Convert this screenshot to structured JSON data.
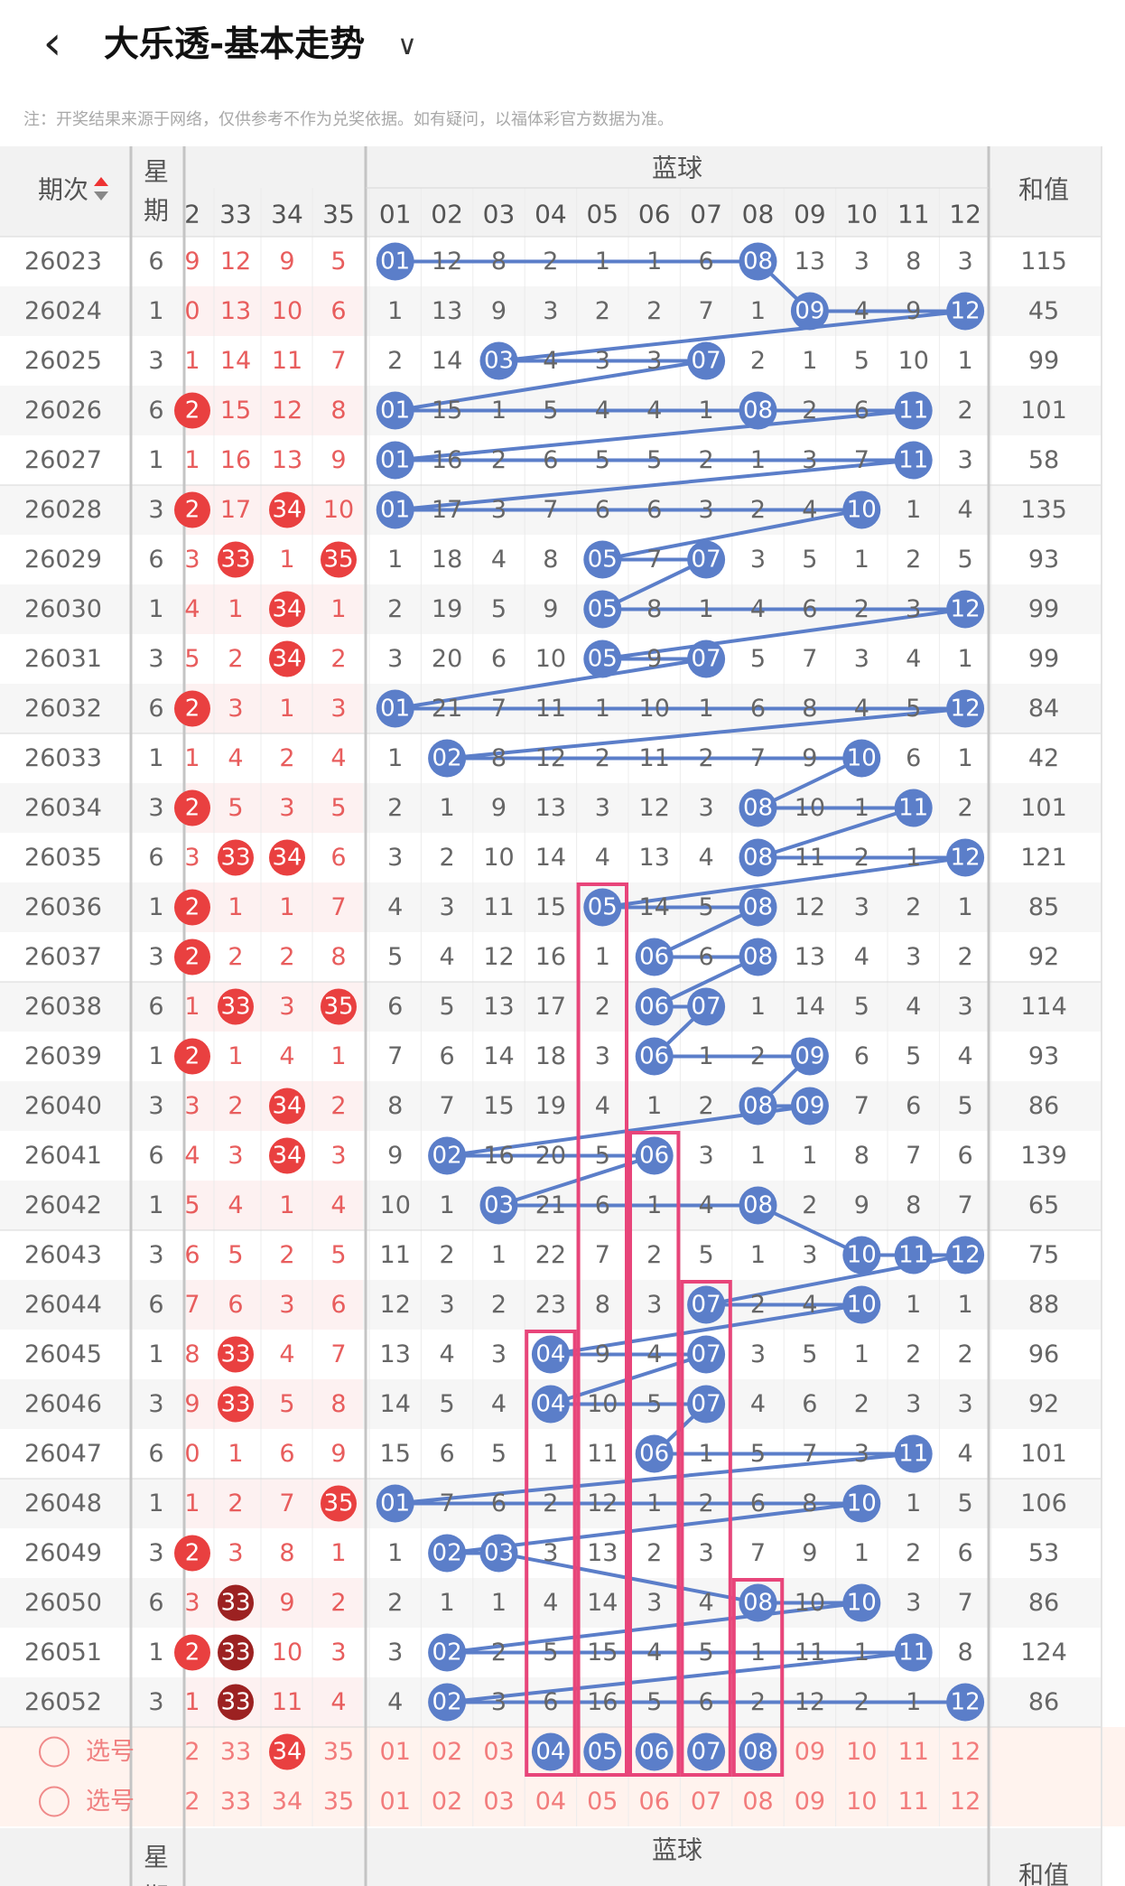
{
  "header": {
    "back_icon": "chevron-left-icon",
    "title": "大乐透-基本走势",
    "dropdown_icon": "chevron-down-icon"
  },
  "notice": "注：开奖结果来源于网络，仅供参考不作为兑奖依据。如有疑问，以福体彩官方数据为准。",
  "table_header": {
    "period": "期次",
    "sort_icon": "sort-arrows-icon",
    "weekday": [
      "星",
      "期"
    ],
    "blue_group": "蓝球",
    "sum": "和值"
  },
  "front_columns": [
    "2",
    "33",
    "34",
    "35"
  ],
  "blue_columns": [
    "01",
    "02",
    "03",
    "04",
    "05",
    "06",
    "07",
    "08",
    "09",
    "10",
    "11",
    "12"
  ],
  "colors": {
    "red_ball": "#e94040",
    "dark_red_ball": "#9c2121",
    "blue_ball": "#5b7ec9",
    "blue_line": "#5b7ec9",
    "highlight_box": "#e8457a",
    "pick_row_bg": "#fff3ee"
  },
  "rows": [
    {
      "p": "26023",
      "w": "6",
      "f": [
        "9",
        "12",
        "9",
        "5"
      ],
      "b": [
        "01",
        "12",
        "8",
        "2",
        "1",
        "1",
        "6",
        "08",
        "13",
        "3",
        "8",
        "3"
      ],
      "s": "115"
    },
    {
      "p": "26024",
      "w": "1",
      "f": [
        "0",
        "13",
        "10",
        "6"
      ],
      "b": [
        "1",
        "13",
        "9",
        "3",
        "2",
        "2",
        "7",
        "1",
        "09",
        "4",
        "9",
        "12"
      ],
      "s": "45"
    },
    {
      "p": "26025",
      "w": "3",
      "f": [
        "1",
        "14",
        "11",
        "7"
      ],
      "b": [
        "2",
        "14",
        "03",
        "4",
        "3",
        "3",
        "07",
        "2",
        "1",
        "5",
        "10",
        "1"
      ],
      "s": "99"
    },
    {
      "p": "26026",
      "w": "6",
      "f": [
        "2",
        "15",
        "12",
        "8"
      ],
      "b": [
        "01",
        "15",
        "1",
        "5",
        "4",
        "4",
        "1",
        "08",
        "2",
        "6",
        "11",
        "2"
      ],
      "s": "101"
    },
    {
      "p": "26027",
      "w": "1",
      "f": [
        "1",
        "16",
        "13",
        "9"
      ],
      "b": [
        "01",
        "16",
        "2",
        "6",
        "5",
        "5",
        "2",
        "1",
        "3",
        "7",
        "11",
        "3"
      ],
      "s": "58"
    },
    {
      "p": "26028",
      "w": "3",
      "f": [
        "2",
        "17",
        "34",
        "10"
      ],
      "b": [
        "01",
        "17",
        "3",
        "7",
        "6",
        "6",
        "3",
        "2",
        "4",
        "10",
        "1",
        "4"
      ],
      "s": "135"
    },
    {
      "p": "26029",
      "w": "6",
      "f": [
        "3",
        "33",
        "1",
        "35"
      ],
      "b": [
        "1",
        "18",
        "4",
        "8",
        "05",
        "7",
        "07",
        "3",
        "5",
        "1",
        "2",
        "5"
      ],
      "s": "93"
    },
    {
      "p": "26030",
      "w": "1",
      "f": [
        "4",
        "1",
        "34",
        "1"
      ],
      "b": [
        "2",
        "19",
        "5",
        "9",
        "05",
        "8",
        "1",
        "4",
        "6",
        "2",
        "3",
        "12"
      ],
      "s": "99"
    },
    {
      "p": "26031",
      "w": "3",
      "f": [
        "5",
        "2",
        "34",
        "2"
      ],
      "b": [
        "3",
        "20",
        "6",
        "10",
        "05",
        "9",
        "07",
        "5",
        "7",
        "3",
        "4",
        "1"
      ],
      "s": "99"
    },
    {
      "p": "26032",
      "w": "6",
      "f": [
        "2",
        "3",
        "1",
        "3"
      ],
      "b": [
        "01",
        "21",
        "7",
        "11",
        "1",
        "10",
        "1",
        "6",
        "8",
        "4",
        "5",
        "12"
      ],
      "s": "84"
    },
    {
      "p": "26033",
      "w": "1",
      "f": [
        "1",
        "4",
        "2",
        "4"
      ],
      "b": [
        "1",
        "02",
        "8",
        "12",
        "2",
        "11",
        "2",
        "7",
        "9",
        "10",
        "6",
        "1"
      ],
      "s": "42"
    },
    {
      "p": "26034",
      "w": "3",
      "f": [
        "2",
        "5",
        "3",
        "5"
      ],
      "b": [
        "2",
        "1",
        "9",
        "13",
        "3",
        "12",
        "3",
        "08",
        "10",
        "1",
        "11",
        "2"
      ],
      "s": "101"
    },
    {
      "p": "26035",
      "w": "6",
      "f": [
        "3",
        "33",
        "34",
        "6"
      ],
      "b": [
        "3",
        "2",
        "10",
        "14",
        "4",
        "13",
        "4",
        "08",
        "11",
        "2",
        "1",
        "12"
      ],
      "s": "121"
    },
    {
      "p": "26036",
      "w": "1",
      "f": [
        "2",
        "1",
        "1",
        "7"
      ],
      "b": [
        "4",
        "3",
        "11",
        "15",
        "05",
        "14",
        "5",
        "08",
        "12",
        "3",
        "2",
        "1"
      ],
      "s": "85"
    },
    {
      "p": "26037",
      "w": "3",
      "f": [
        "2",
        "2",
        "2",
        "8"
      ],
      "b": [
        "5",
        "4",
        "12",
        "16",
        "1",
        "06",
        "6",
        "08",
        "13",
        "4",
        "3",
        "2"
      ],
      "s": "92"
    },
    {
      "p": "26038",
      "w": "6",
      "f": [
        "1",
        "33",
        "3",
        "35"
      ],
      "b": [
        "6",
        "5",
        "13",
        "17",
        "2",
        "06",
        "07",
        "1",
        "14",
        "5",
        "4",
        "3"
      ],
      "s": "114"
    },
    {
      "p": "26039",
      "w": "1",
      "f": [
        "2",
        "1",
        "4",
        "1"
      ],
      "b": [
        "7",
        "6",
        "14",
        "18",
        "3",
        "06",
        "1",
        "2",
        "09",
        "6",
        "5",
        "4"
      ],
      "s": "93"
    },
    {
      "p": "26040",
      "w": "3",
      "f": [
        "3",
        "2",
        "34",
        "2"
      ],
      "b": [
        "8",
        "7",
        "15",
        "19",
        "4",
        "1",
        "2",
        "08",
        "09",
        "7",
        "6",
        "5"
      ],
      "s": "86"
    },
    {
      "p": "26041",
      "w": "6",
      "f": [
        "4",
        "3",
        "34",
        "3"
      ],
      "b": [
        "9",
        "02",
        "16",
        "20",
        "5",
        "06",
        "3",
        "1",
        "1",
        "8",
        "7",
        "6"
      ],
      "s": "139"
    },
    {
      "p": "26042",
      "w": "1",
      "f": [
        "5",
        "4",
        "1",
        "4"
      ],
      "b": [
        "10",
        "1",
        "03",
        "21",
        "6",
        "1",
        "4",
        "08",
        "2",
        "9",
        "8",
        "7"
      ],
      "s": "65"
    },
    {
      "p": "26043",
      "w": "3",
      "f": [
        "6",
        "5",
        "2",
        "5"
      ],
      "b": [
        "11",
        "2",
        "1",
        "22",
        "7",
        "2",
        "5",
        "1",
        "3",
        "10",
        "11",
        "12"
      ],
      "s": "75"
    },
    {
      "p": "26044",
      "w": "6",
      "f": [
        "7",
        "6",
        "3",
        "6"
      ],
      "b": [
        "12",
        "3",
        "2",
        "23",
        "8",
        "3",
        "07",
        "2",
        "4",
        "10",
        "1",
        "1"
      ],
      "s": "88"
    },
    {
      "p": "26045",
      "w": "1",
      "f": [
        "8",
        "33",
        "4",
        "7"
      ],
      "b": [
        "13",
        "4",
        "3",
        "04",
        "9",
        "4",
        "07",
        "3",
        "5",
        "1",
        "2",
        "2"
      ],
      "s": "96"
    },
    {
      "p": "26046",
      "w": "3",
      "f": [
        "9",
        "33",
        "5",
        "8"
      ],
      "b": [
        "14",
        "5",
        "4",
        "04",
        "10",
        "5",
        "07",
        "4",
        "6",
        "2",
        "3",
        "3"
      ],
      "s": "92"
    },
    {
      "p": "26047",
      "w": "6",
      "f": [
        "0",
        "1",
        "6",
        "9"
      ],
      "b": [
        "15",
        "6",
        "5",
        "1",
        "11",
        "06",
        "1",
        "5",
        "7",
        "3",
        "11",
        "4"
      ],
      "s": "101"
    },
    {
      "p": "26048",
      "w": "1",
      "f": [
        "1",
        "2",
        "7",
        "35"
      ],
      "b": [
        "01",
        "7",
        "6",
        "2",
        "12",
        "1",
        "2",
        "6",
        "8",
        "10",
        "1",
        "5"
      ],
      "s": "106"
    },
    {
      "p": "26049",
      "w": "3",
      "f": [
        "2",
        "3",
        "8",
        "1"
      ],
      "b": [
        "1",
        "02",
        "03",
        "3",
        "13",
        "2",
        "3",
        "7",
        "9",
        "1",
        "2",
        "6"
      ],
      "s": "53"
    },
    {
      "p": "26050",
      "w": "6",
      "f": [
        "3",
        "33",
        "9",
        "2"
      ],
      "b": [
        "2",
        "1",
        "1",
        "4",
        "14",
        "3",
        "4",
        "08",
        "10",
        "10",
        "3",
        "7"
      ],
      "s": "86"
    },
    {
      "p": "26051",
      "w": "1",
      "f": [
        "2",
        "33",
        "10",
        "3"
      ],
      "b": [
        "3",
        "02",
        "2",
        "5",
        "15",
        "4",
        "5",
        "1",
        "11",
        "1",
        "11",
        "8"
      ],
      "s": "124"
    },
    {
      "p": "26052",
      "w": "3",
      "f": [
        "1",
        "33",
        "11",
        "4"
      ],
      "b": [
        "4",
        "02",
        "3",
        "6",
        "16",
        "5",
        "6",
        "2",
        "12",
        "2",
        "1",
        "12"
      ],
      "s": "86"
    }
  ],
  "pick_label": "选号",
  "pick_rows": [
    {
      "f": [
        "2",
        "33",
        "34",
        "35"
      ],
      "b": [
        "01",
        "02",
        "03",
        "04",
        "05",
        "06",
        "07",
        "08",
        "09",
        "10",
        "11",
        "12"
      ]
    },
    {
      "f": [
        "2",
        "33",
        "34",
        "35"
      ],
      "b": [
        "01",
        "02",
        "03",
        "04",
        "05",
        "06",
        "07",
        "08",
        "09",
        "10",
        "11",
        "12"
      ]
    }
  ],
  "footer_header": {
    "period": "-",
    "weekday": [
      "星",
      "期"
    ],
    "blue_group": "蓝球",
    "sum": "和值"
  }
}
